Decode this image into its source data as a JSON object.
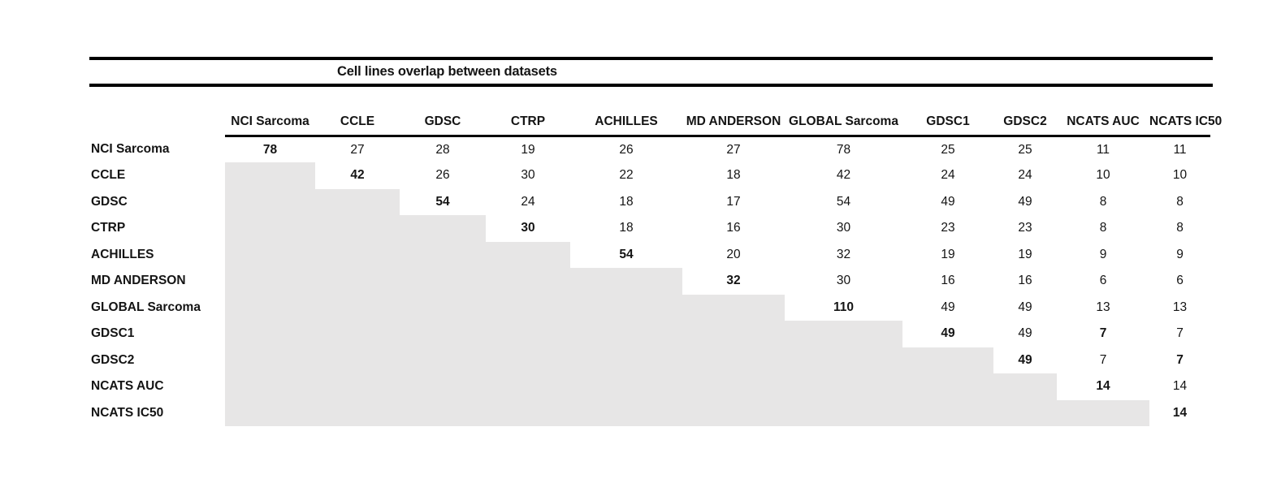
{
  "table": {
    "title": "Cell lines overlap between datasets"
  },
  "colors": {
    "background": "#ffffff",
    "rule": "#000000",
    "text": "#141414",
    "shaded_cell": "#e7e6e6"
  },
  "chart_data": {
    "type": "table",
    "title": "Cell lines overlap between datasets",
    "layout_hints": {
      "shape": "upper-triangular overlap matrix",
      "diagonal_values_bold": true,
      "lower_triangle": "shaded gray, empty",
      "title_band": "double black rules above table"
    },
    "columns": [
      "NCI Sarcoma",
      "CCLE",
      "GDSC",
      "CTRP",
      "ACHILLES",
      "MD ANDERSON",
      "GLOBAL Sarcoma",
      "GDSC1",
      "GDSC2",
      "NCATS AUC",
      "NCATS IC50"
    ],
    "rows": [
      {
        "label": "NCI Sarcoma",
        "values": [
          78,
          27,
          28,
          19,
          26,
          27,
          78,
          25,
          25,
          11,
          11
        ],
        "bold_cols": [
          0
        ]
      },
      {
        "label": "CCLE",
        "values": [
          null,
          42,
          26,
          30,
          22,
          18,
          42,
          24,
          24,
          10,
          10
        ],
        "bold_cols": [
          1
        ]
      },
      {
        "label": "GDSC",
        "values": [
          null,
          null,
          54,
          24,
          18,
          17,
          54,
          49,
          49,
          8,
          8
        ],
        "bold_cols": [
          2
        ]
      },
      {
        "label": "CTRP",
        "values": [
          null,
          null,
          null,
          30,
          18,
          16,
          30,
          23,
          23,
          8,
          8
        ],
        "bold_cols": [
          3
        ]
      },
      {
        "label": "ACHILLES",
        "values": [
          null,
          null,
          null,
          null,
          54,
          20,
          32,
          19,
          19,
          9,
          9
        ],
        "bold_cols": [
          4
        ]
      },
      {
        "label": "MD ANDERSON",
        "values": [
          null,
          null,
          null,
          null,
          null,
          32,
          30,
          16,
          16,
          6,
          6
        ],
        "bold_cols": [
          5
        ]
      },
      {
        "label": "GLOBAL Sarcoma",
        "values": [
          null,
          null,
          null,
          null,
          null,
          null,
          110,
          49,
          49,
          13,
          13
        ],
        "bold_cols": [
          6
        ]
      },
      {
        "label": "GDSC1",
        "values": [
          null,
          null,
          null,
          null,
          null,
          null,
          null,
          49,
          49,
          7,
          7
        ],
        "bold_cols": [
          7,
          9
        ]
      },
      {
        "label": "GDSC2",
        "values": [
          null,
          null,
          null,
          null,
          null,
          null,
          null,
          null,
          49,
          7,
          7
        ],
        "bold_cols": [
          8,
          10
        ]
      },
      {
        "label": "NCATS AUC",
        "values": [
          null,
          null,
          null,
          null,
          null,
          null,
          null,
          null,
          null,
          14,
          14
        ],
        "bold_cols": [
          9
        ]
      },
      {
        "label": "NCATS IC50",
        "values": [
          null,
          null,
          null,
          null,
          null,
          null,
          null,
          null,
          null,
          null,
          14
        ],
        "bold_cols": [
          10
        ]
      }
    ]
  }
}
